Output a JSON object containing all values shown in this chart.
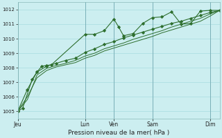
{
  "background_color": "#cceef0",
  "grid_color": "#a8dce0",
  "line_color": "#2d6e2d",
  "xlabel": "Pression niveau de la mer( hPa )",
  "ylim": [
    1004.5,
    1012.5
  ],
  "yticks": [
    1005,
    1006,
    1007,
    1008,
    1009,
    1010,
    1011,
    1012
  ],
  "x_day_labels": [
    "Jeu",
    "Lun",
    "Ven",
    "Sam",
    "Dim"
  ],
  "x_day_positions": [
    0,
    42,
    60,
    84,
    120
  ],
  "xlim": [
    0,
    126
  ],
  "vline_color": "#7ab0b8",
  "line1_x": [
    0,
    3,
    9,
    12,
    15,
    18,
    21,
    42,
    48,
    54,
    60,
    63,
    66,
    72,
    78,
    84,
    90,
    96,
    102,
    108,
    114,
    120,
    126
  ],
  "line1_y": [
    1005.0,
    1005.2,
    1007.2,
    1007.7,
    1008.1,
    1008.15,
    1008.2,
    1010.3,
    1010.3,
    1010.55,
    1011.35,
    1010.8,
    1010.2,
    1010.35,
    1011.05,
    1011.45,
    1011.5,
    1011.85,
    1011.0,
    1011.05,
    1011.9,
    1011.95,
    1011.95
  ],
  "line2_x": [
    0,
    6,
    12,
    18,
    24,
    30,
    36,
    42,
    48,
    54,
    60,
    66,
    72,
    78,
    84,
    90,
    96,
    102,
    108,
    114,
    120,
    126
  ],
  "line2_y": [
    1005.0,
    1006.5,
    1007.7,
    1008.1,
    1008.3,
    1008.5,
    1008.65,
    1009.05,
    1009.3,
    1009.6,
    1009.8,
    1010.05,
    1010.25,
    1010.45,
    1010.65,
    1010.85,
    1011.05,
    1011.2,
    1011.4,
    1011.6,
    1011.8,
    1011.95
  ],
  "line3_x": [
    0,
    6,
    12,
    18,
    24,
    30,
    36,
    42,
    48,
    54,
    60,
    66,
    72,
    78,
    84,
    90,
    96,
    102,
    108,
    114,
    120,
    126
  ],
  "line3_y": [
    1005.0,
    1006.0,
    1007.3,
    1007.8,
    1008.05,
    1008.2,
    1008.35,
    1008.65,
    1008.85,
    1009.15,
    1009.35,
    1009.55,
    1009.75,
    1009.95,
    1010.15,
    1010.4,
    1010.6,
    1010.8,
    1011.0,
    1011.2,
    1011.55,
    1011.95
  ],
  "line4_x": [
    0,
    6,
    12,
    18,
    24,
    30,
    36,
    42,
    48,
    54,
    60,
    66,
    72,
    78,
    84,
    90,
    96,
    102,
    108,
    114,
    120,
    126
  ],
  "line4_y": [
    1005.0,
    1005.8,
    1007.5,
    1007.95,
    1008.15,
    1008.3,
    1008.5,
    1008.8,
    1009.0,
    1009.3,
    1009.5,
    1009.7,
    1009.95,
    1010.15,
    1010.35,
    1010.55,
    1010.8,
    1011.0,
    1011.2,
    1011.4,
    1011.7,
    1011.95
  ]
}
